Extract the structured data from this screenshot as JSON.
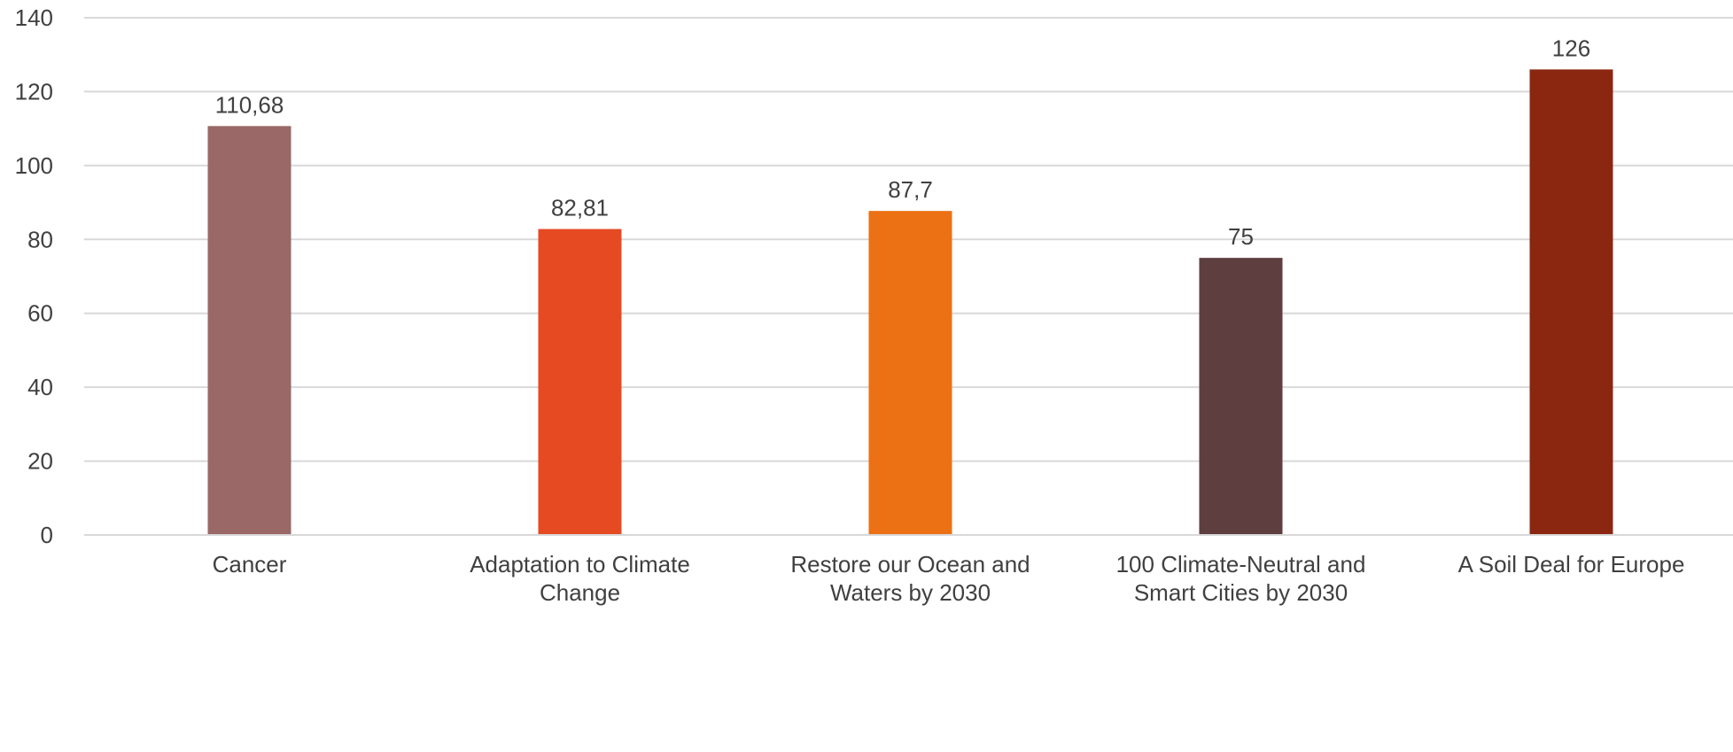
{
  "chart_data": {
    "type": "bar",
    "title": "",
    "xlabel": "",
    "ylabel": "",
    "ylim": [
      0,
      140
    ],
    "ytick_step": 20,
    "grid": true,
    "legend": "none",
    "categories": [
      [
        "Cancer"
      ],
      [
        "Adaptation to Climate",
        "Change"
      ],
      [
        "Restore our Ocean and",
        "Waters by 2030"
      ],
      [
        "100 Climate-Neutral and",
        "Smart Cities by 2030"
      ],
      [
        "A Soil Deal for Europe"
      ]
    ],
    "values": [
      110.68,
      82.81,
      87.7,
      75,
      126
    ],
    "value_labels": [
      "110,68",
      "82,81",
      "87,7",
      "75",
      "126"
    ],
    "colors": [
      "#9a6867",
      "#e54a22",
      "#ec7014",
      "#5e3e3e",
      "#8b2711"
    ]
  }
}
